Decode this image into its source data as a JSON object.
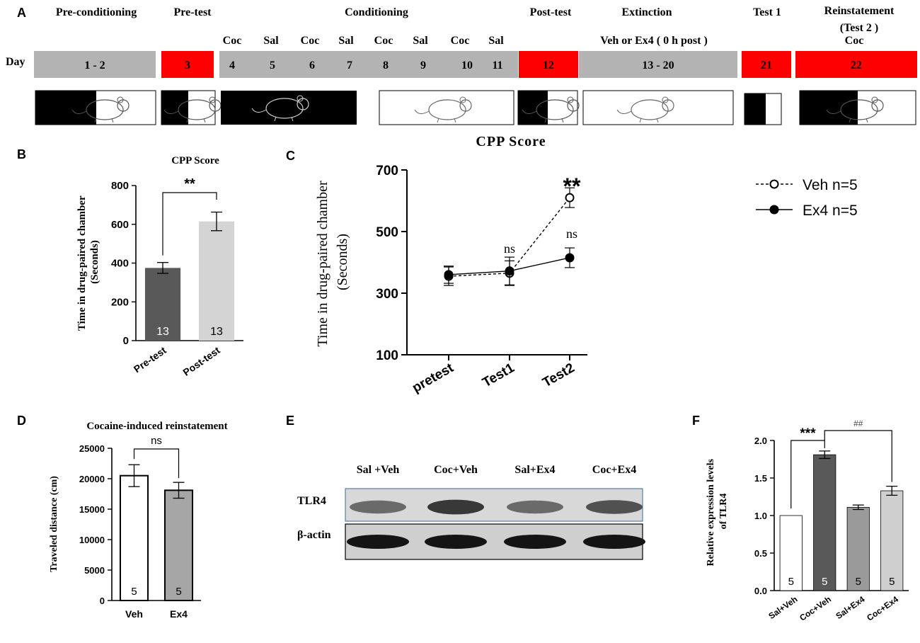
{
  "panel_labels": {
    "a": "A",
    "b": "B",
    "c": "C",
    "d": "D",
    "e": "E",
    "f": "F"
  },
  "timeline": {
    "day_label": "Day",
    "phases": [
      {
        "key": "precond",
        "label": "Pre-conditioning"
      },
      {
        "key": "pretest",
        "label": "Pre-test"
      },
      {
        "key": "cond",
        "label": "Conditioning"
      },
      {
        "key": "posttest",
        "label": "Post-test"
      },
      {
        "key": "ext",
        "label": "Extinction"
      },
      {
        "key": "test1",
        "label": "Test 1"
      },
      {
        "key": "reinst",
        "label": "Reinstatement"
      }
    ],
    "reinst_sub": "(Test 2 )",
    "reinst_drug": "Coc",
    "ext_treatment": "Veh or Ex4 ( 0 h post )",
    "cond_drugs": [
      "Coc",
      "Sal",
      "Coc",
      "Sal",
      "Coc",
      "Sal",
      "Coc",
      "Sal"
    ],
    "cond_days": [
      "4",
      "5",
      "6",
      "7",
      "8",
      "9",
      "10",
      "11"
    ],
    "day_blocks": [
      {
        "key": "d12",
        "label": "1 - 2",
        "color": "#b3b3b3"
      },
      {
        "key": "d3",
        "label": "3",
        "color": "#ff0000"
      },
      {
        "key": "d12b",
        "label": "12",
        "color": "#ff0000"
      },
      {
        "key": "d13",
        "label": "13 - 20",
        "color": "#b3b3b3"
      },
      {
        "key": "d21",
        "label": "21",
        "color": "#ff0000"
      },
      {
        "key": "d22",
        "label": "22",
        "color": "#ff0000"
      }
    ]
  },
  "chart_data": [
    {
      "panel": "B",
      "type": "bar",
      "title": "CPP Score",
      "ylabel": "Time in drug-paired chamber (Seconds)",
      "ylim": [
        0,
        800
      ],
      "yticks": [
        0,
        200,
        400,
        600,
        800
      ],
      "categories": [
        "Pre-test",
        "Post-test"
      ],
      "values": [
        375,
        615
      ],
      "errors": [
        28,
        48
      ],
      "n_labels": [
        "13",
        "13"
      ],
      "colors": [
        "#595959",
        "#d4d4d4"
      ],
      "significance": "**"
    },
    {
      "panel": "C",
      "type": "line",
      "title": "CPP Score",
      "ylabel": "Time in drug-paired chamber (Seconds)",
      "ylim": [
        100,
        700
      ],
      "yticks": [
        100,
        300,
        500,
        700
      ],
      "categories": [
        "pretest",
        "Test1",
        "Test2"
      ],
      "series": [
        {
          "name": "Veh n=5",
          "values": [
            355,
            365,
            610
          ],
          "errors": [
            30,
            40,
            32
          ],
          "style": "dashed-open"
        },
        {
          "name": "Ex4 n=5",
          "values": [
            360,
            372,
            415
          ],
          "errors": [
            28,
            45,
            32
          ],
          "style": "solid-filled"
        }
      ],
      "annotations": [
        "ns",
        "**",
        "ns"
      ]
    },
    {
      "panel": "D",
      "type": "bar",
      "title": "Cocaine-induced reinstatement",
      "ylabel": "Traveled distance (cm)",
      "ylim": [
        0,
        25000
      ],
      "yticks": [
        0,
        5000,
        10000,
        15000,
        20000,
        25000
      ],
      "categories": [
        "Veh",
        "Ex4"
      ],
      "values": [
        20500,
        18100
      ],
      "errors": [
        1800,
        1300
      ],
      "n_labels": [
        "5",
        "5"
      ],
      "colors": [
        "#ffffff",
        "#a6a6a6"
      ],
      "significance": "ns"
    },
    {
      "panel": "F",
      "type": "bar",
      "ylabel": "Relative expression levels of TLR4",
      "ylim": [
        0,
        2.0
      ],
      "yticks": [
        "0.0",
        "0.5",
        "1.0",
        "1.5",
        "2.0"
      ],
      "categories": [
        "Sal+Veh",
        "Coc+Veh",
        "Sal+Ex4",
        "Coc+Ex4"
      ],
      "values": [
        1.0,
        1.81,
        1.11,
        1.33
      ],
      "errors": [
        0,
        0.05,
        0.03,
        0.06
      ],
      "n_labels": [
        "5",
        "5",
        "5",
        "5"
      ],
      "colors": [
        "#ffffff",
        "#595959",
        "#9a9a9a",
        "#cfcfcf"
      ],
      "significance": [
        "***",
        "##"
      ]
    }
  ],
  "blot": {
    "lanes": [
      "Sal +Veh",
      "Coc+Veh",
      "Sal+Ex4",
      "Coc+Ex4"
    ],
    "rows": [
      "TLR4",
      "β-actin"
    ],
    "tlr4_intensity": [
      0.55,
      0.85,
      0.55,
      0.7
    ],
    "actin_intensity": [
      0.95,
      0.95,
      0.95,
      0.95
    ]
  }
}
